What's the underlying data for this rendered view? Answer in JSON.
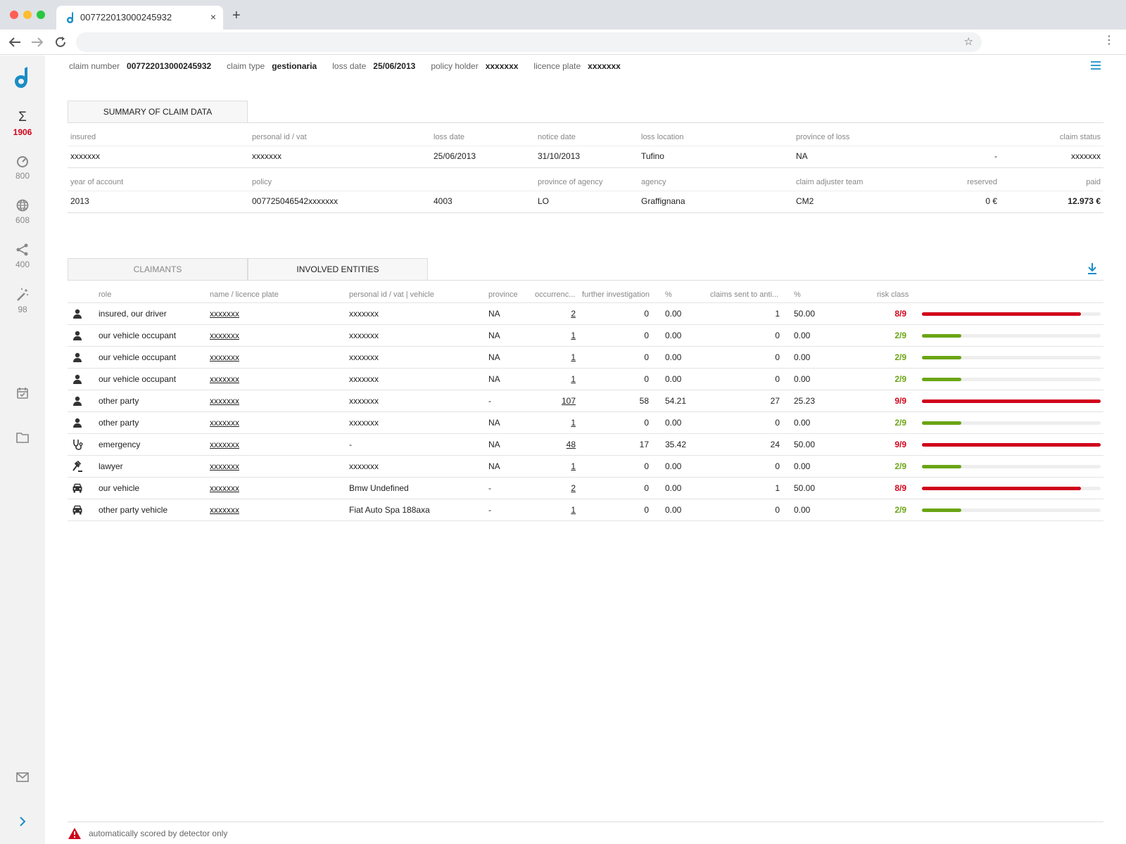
{
  "browser": {
    "tab_title": "007722013000245932",
    "new_tab": "+",
    "close": "×"
  },
  "sidebar": {
    "items": [
      {
        "icon": "sigma-icon",
        "glyph": "Σ",
        "count": "1906"
      },
      {
        "icon": "speedometer-icon",
        "count": "800"
      },
      {
        "icon": "globe-icon",
        "count": "608"
      },
      {
        "icon": "share-icon",
        "count": "400"
      },
      {
        "icon": "magic-wand-icon",
        "count": "98"
      }
    ]
  },
  "header": {
    "claim_number_label": "claim number",
    "claim_number": "007722013000245932",
    "claim_type_label": "claim type",
    "claim_type": "gestionaria",
    "loss_date_label": "loss date",
    "loss_date": "25/06/2013",
    "policy_holder_label": "policy holder",
    "policy_holder": "xxxxxxx",
    "licence_plate_label": "licence plate",
    "licence_plate": "xxxxxxx"
  },
  "summary": {
    "tab_label": "SUMMARY OF CLAIM DATA",
    "row1_labels": {
      "insured": "insured",
      "personal_id": "personal id / vat",
      "loss_date": "loss date",
      "notice_date": "notice date",
      "loss_location": "loss location",
      "province_of_loss": "province of loss",
      "claim_status": "claim status"
    },
    "row1_values": {
      "insured": "xxxxxxx",
      "personal_id": "xxxxxxx",
      "loss_date": "25/06/2013",
      "notice_date": "31/10/2013",
      "loss_location": "Tufino",
      "province_of_loss": "NA",
      "dash": "-",
      "claim_status": "xxxxxxx"
    },
    "row2_labels": {
      "year_of_account": "year of account",
      "policy": "policy",
      "province_of_agency": "province of agency",
      "agency": "agency",
      "claim_adjuster_team": "claim adjuster team",
      "reserved": "reserved",
      "paid": "paid"
    },
    "row2_values": {
      "year_of_account": "2013",
      "policy": "007725046542xxxxxxx",
      "policy_code": "4003",
      "province_of_agency": "LO",
      "agency": "Graffignana",
      "claim_adjuster_team": "CM2",
      "reserved": "0 €",
      "paid": "12.973 €"
    }
  },
  "entities": {
    "tabs": [
      "CLAIMANTS",
      "INVOLVED ENTITIES"
    ],
    "headers": {
      "role": "role",
      "name": "name / licence plate",
      "pid": "personal id / vat | vehicle",
      "province": "province",
      "occurrences": "occurrenc...",
      "further": "further investigation",
      "pct1": "%",
      "sent": "claims sent to anti...",
      "pct2": "%",
      "risk": "risk class"
    },
    "rows": [
      {
        "icon": "person-icon",
        "role": "insured, our driver",
        "name": "xxxxxxx",
        "pid": "xxxxxxx",
        "province": "NA",
        "occ": "2",
        "further": "0",
        "pct1": "0.00",
        "sent": "1",
        "pct2": "50.00",
        "risk": "8/9",
        "level": "high",
        "fill": 0.89
      },
      {
        "icon": "person-icon",
        "role": "our vehicle occupant",
        "name": "xxxxxxx",
        "pid": "xxxxxxx",
        "province": "NA",
        "occ": "1",
        "further": "0",
        "pct1": "0.00",
        "sent": "0",
        "pct2": "0.00",
        "risk": "2/9",
        "level": "low",
        "fill": 0.22
      },
      {
        "icon": "person-icon",
        "role": "our vehicle occupant",
        "name": "xxxxxxx",
        "pid": "xxxxxxx",
        "province": "NA",
        "occ": "1",
        "further": "0",
        "pct1": "0.00",
        "sent": "0",
        "pct2": "0.00",
        "risk": "2/9",
        "level": "low",
        "fill": 0.22
      },
      {
        "icon": "person-icon",
        "role": "our vehicle occupant",
        "name": "xxxxxxx",
        "pid": "xxxxxxx",
        "province": "NA",
        "occ": "1",
        "further": "0",
        "pct1": "0.00",
        "sent": "0",
        "pct2": "0.00",
        "risk": "2/9",
        "level": "low",
        "fill": 0.22
      },
      {
        "icon": "person-icon",
        "role": "other party",
        "name": "xxxxxxx",
        "pid": "xxxxxxx",
        "province": "-",
        "occ": "107",
        "further": "58",
        "pct1": "54.21",
        "sent": "27",
        "pct2": "25.23",
        "risk": "9/9",
        "level": "high",
        "fill": 1.0
      },
      {
        "icon": "person-icon",
        "role": "other party",
        "name": "xxxxxxx",
        "pid": "xxxxxxx",
        "province": "NA",
        "occ": "1",
        "further": "0",
        "pct1": "0.00",
        "sent": "0",
        "pct2": "0.00",
        "risk": "2/9",
        "level": "low",
        "fill": 0.22
      },
      {
        "icon": "stethoscope-icon",
        "role": "emergency",
        "name": "xxxxxxx",
        "pid": "-",
        "province": "NA",
        "occ": "48",
        "further": "17",
        "pct1": "35.42",
        "sent": "24",
        "pct2": "50.00",
        "risk": "9/9",
        "level": "high",
        "fill": 1.0
      },
      {
        "icon": "gavel-icon",
        "role": "lawyer",
        "name": "xxxxxxx",
        "pid": "xxxxxxx",
        "province": "NA",
        "occ": "1",
        "further": "0",
        "pct1": "0.00",
        "sent": "0",
        "pct2": "0.00",
        "risk": "2/9",
        "level": "low",
        "fill": 0.22
      },
      {
        "icon": "car-icon",
        "role": "our vehicle",
        "name": "xxxxxxx",
        "pid": "Bmw Undefined",
        "province": "-",
        "occ": "2",
        "further": "0",
        "pct1": "0.00",
        "sent": "1",
        "pct2": "50.00",
        "risk": "8/9",
        "level": "high",
        "fill": 0.89
      },
      {
        "icon": "car-icon",
        "role": "other party vehicle",
        "name": "xxxxxxx",
        "pid": "Fiat Auto Spa 188axa",
        "province": "-",
        "occ": "1",
        "further": "0",
        "pct1": "0.00",
        "sent": "0",
        "pct2": "0.00",
        "risk": "2/9",
        "level": "low",
        "fill": 0.22
      }
    ]
  },
  "footer": {
    "note": "automatically scored by detector only"
  },
  "colors": {
    "accent": "#1a8dc6",
    "risk_high": "#d0021b",
    "risk_low": "#6aa514"
  }
}
